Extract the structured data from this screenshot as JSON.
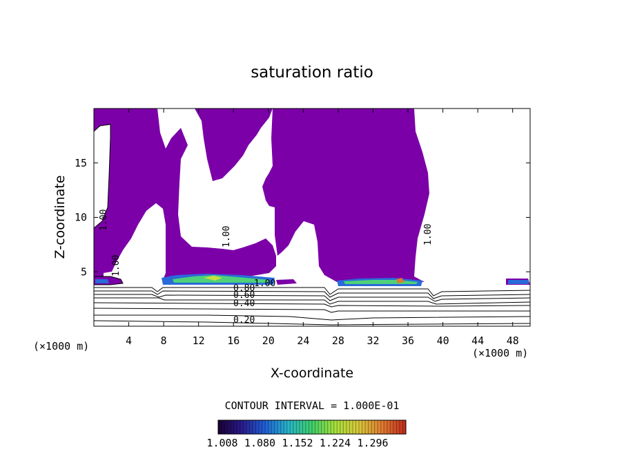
{
  "chart_data": {
    "type": "heatmap",
    "title": "saturation ratio",
    "xlabel": "X-coordinate",
    "ylabel": "Z-coordinate",
    "x_unit_label": "(×1000 m)",
    "y_unit_label": "(×1000 m)",
    "xlim": [
      0,
      50
    ],
    "ylim": [
      0,
      20
    ],
    "x_ticks": [
      4,
      8,
      12,
      16,
      20,
      24,
      28,
      32,
      36,
      40,
      44,
      48
    ],
    "y_ticks": [
      5,
      10,
      15
    ],
    "contour_interval_text": "CONTOUR INTERVAL = 1.000E-01",
    "contour_labels": [
      "0.20",
      "0.40",
      "0.60",
      "0.80",
      "1.00",
      "1.00",
      "1.00",
      "1.00",
      "1.00"
    ],
    "colorbar": {
      "tick_labels": [
        "1.008",
        "1.080",
        "1.152",
        "1.224",
        "1.296"
      ],
      "range": [
        1.008,
        1.296
      ],
      "colors": [
        "#1a0033",
        "#2a1a8c",
        "#1f5fd6",
        "#27b6c8",
        "#3fcf6a",
        "#a8e03a",
        "#d8c63a",
        "#e07a30",
        "#c02a1a"
      ]
    },
    "fill_color_supersaturated": "#7b00a8",
    "grid": false
  }
}
